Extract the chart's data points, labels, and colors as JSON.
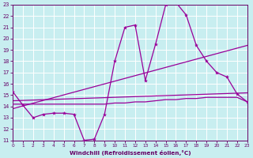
{
  "bg_color": "#c8eef0",
  "grid_color": "#ffffff",
  "line_color": "#990099",
  "xlabel": "Windchill (Refroidissement éolien,°C)",
  "xlabel_color": "#660066",
  "tick_color": "#660066",
  "xmin": 0,
  "xmax": 23,
  "ymin": 11,
  "ymax": 23,
  "line1_x": [
    0,
    1,
    2,
    3,
    4,
    5,
    6,
    7,
    8,
    9,
    10,
    11,
    12,
    13,
    14,
    15,
    16,
    17,
    18,
    19,
    20,
    21,
    22,
    23
  ],
  "line1_y": [
    15.3,
    14.1,
    13.0,
    13.3,
    13.4,
    13.4,
    13.3,
    11.0,
    11.1,
    13.3,
    18.0,
    21.0,
    21.2,
    16.3,
    19.5,
    23.0,
    23.2,
    22.1,
    19.4,
    18.0,
    17.0,
    16.6,
    15.1,
    14.4
  ],
  "line2_x": [
    0,
    1,
    2,
    3,
    4,
    5,
    6,
    7,
    8,
    9,
    10,
    11,
    12,
    13,
    14,
    15,
    16,
    17,
    18,
    19,
    20,
    21,
    22,
    23
  ],
  "line2_y": [
    14.2,
    14.2,
    14.2,
    14.2,
    14.2,
    14.2,
    14.2,
    14.2,
    14.2,
    14.2,
    14.3,
    14.3,
    14.4,
    14.4,
    14.5,
    14.6,
    14.6,
    14.7,
    14.7,
    14.8,
    14.8,
    14.8,
    14.8,
    14.4
  ],
  "line3_x": [
    0,
    23
  ],
  "line3_y": [
    13.8,
    19.4
  ],
  "line4_x": [
    0,
    23
  ],
  "line4_y": [
    14.5,
    15.2
  ]
}
